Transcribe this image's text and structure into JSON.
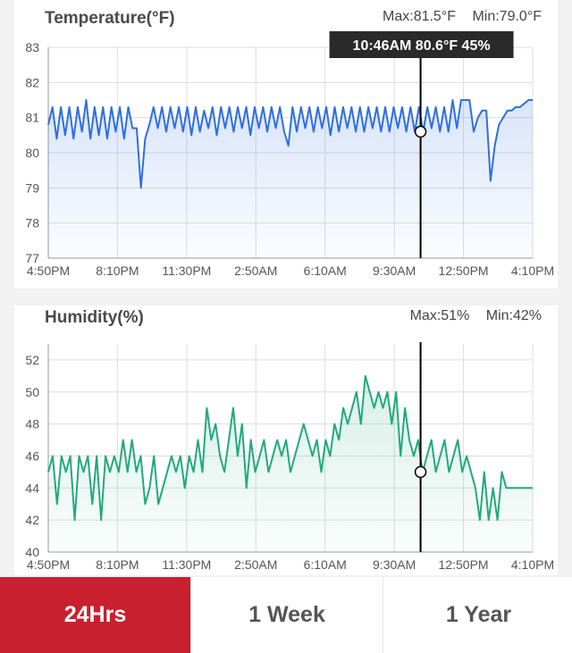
{
  "temperature": {
    "title": "Temperature(°F)",
    "max_label": "Max:81.5°F",
    "min_label": "Min:79.0°F",
    "tooltip": "10:46AM 80.6°F 45%"
  },
  "humidity": {
    "title": "Humidity(%)",
    "max_label": "Max:51%",
    "min_label": "Min:42%"
  },
  "range_tabs": [
    {
      "label": "24Hrs",
      "active": true
    },
    {
      "label": "1 Week",
      "active": false
    },
    {
      "label": "1 Year",
      "active": false
    }
  ],
  "colors": {
    "temperature_line": "#2f6fe0",
    "humidity_line": "#22aa7a",
    "active_tab": "#c8202e"
  },
  "chart_data": [
    {
      "type": "line",
      "title": "Temperature(°F)",
      "ylim": [
        77,
        83
      ],
      "yticks": [
        77,
        78,
        79,
        80,
        81,
        82,
        83
      ],
      "xticks": [
        "4:50PM",
        "8:10PM",
        "11:30PM",
        "2:50AM",
        "6:10AM",
        "9:30AM",
        "12:50PM",
        "4:10PM"
      ],
      "cursor": {
        "x": "10:46AM",
        "y": 80.6
      },
      "series": [
        {
          "values": [
            80.8,
            81.3,
            80.4,
            81.3,
            80.5,
            81.3,
            80.4,
            81.3,
            80.6,
            81.5,
            80.4,
            81.3,
            80.5,
            81.3,
            80.4,
            81.3,
            80.6,
            81.3,
            80.4,
            81.3,
            80.7,
            80.7,
            79.0,
            80.4,
            80.8,
            81.3,
            80.7,
            81.3,
            80.6,
            81.3,
            80.7,
            81.3,
            80.6,
            81.3,
            80.5,
            81.3,
            80.6,
            81.2,
            80.7,
            81.3,
            80.5,
            81.3,
            80.7,
            81.3,
            80.6,
            81.3,
            80.7,
            81.3,
            80.5,
            81.3,
            80.7,
            81.3,
            80.6,
            81.3,
            80.7,
            81.3,
            80.6,
            80.2,
            81.3,
            80.6,
            81.3,
            80.7,
            81.3,
            80.6,
            81.3,
            80.7,
            81.3,
            80.5,
            81.3,
            80.6,
            81.3,
            80.7,
            81.3,
            80.6,
            81.3,
            80.6,
            81.3,
            80.7,
            81.3,
            80.6,
            81.3,
            80.6,
            81.3,
            80.7,
            81.3,
            80.6,
            81.3,
            80.6,
            81.3,
            80.6,
            81.3,
            80.7,
            81.3,
            80.6,
            81.3,
            80.6,
            81.5,
            80.7,
            81.5,
            81.5,
            81.5,
            80.6,
            81.0,
            81.2,
            81.2,
            79.2,
            80.2,
            80.8,
            81.0,
            81.2,
            81.2,
            81.3,
            81.3,
            81.4,
            81.5,
            81.5
          ]
        }
      ]
    },
    {
      "type": "line",
      "title": "Humidity(%)",
      "ylim": [
        40,
        53
      ],
      "yticks": [
        40,
        42,
        44,
        46,
        48,
        50,
        52
      ],
      "xticks": [
        "4:50PM",
        "8:10PM",
        "11:30PM",
        "2:50AM",
        "6:10AM",
        "9:30AM",
        "12:50PM",
        "4:10PM"
      ],
      "cursor": {
        "x": "10:46AM",
        "y": 45
      },
      "series": [
        {
          "values": [
            45,
            46,
            43,
            46,
            45,
            46,
            42,
            46,
            45,
            46,
            43,
            46,
            42,
            46,
            45,
            46,
            45,
            47,
            45,
            47,
            45,
            46,
            43,
            44,
            46,
            43,
            44,
            45,
            46,
            45,
            46,
            44,
            46,
            45,
            47,
            45,
            49,
            47,
            48,
            46,
            45,
            47,
            49,
            46,
            48,
            44,
            47,
            45,
            46,
            47,
            45,
            46,
            47,
            46,
            47,
            45,
            46,
            47,
            48,
            47,
            46,
            47,
            45,
            47,
            46,
            48,
            47,
            49,
            48,
            49,
            50,
            48,
            51,
            50,
            49,
            50,
            49,
            50,
            48,
            50,
            46,
            49,
            47,
            46,
            47,
            45,
            46,
            47,
            45,
            46,
            47,
            45,
            46,
            47,
            45,
            46,
            45,
            44,
            42,
            45,
            42,
            44,
            42,
            45,
            44,
            44,
            44,
            44,
            44,
            44,
            44
          ]
        }
      ]
    }
  ]
}
